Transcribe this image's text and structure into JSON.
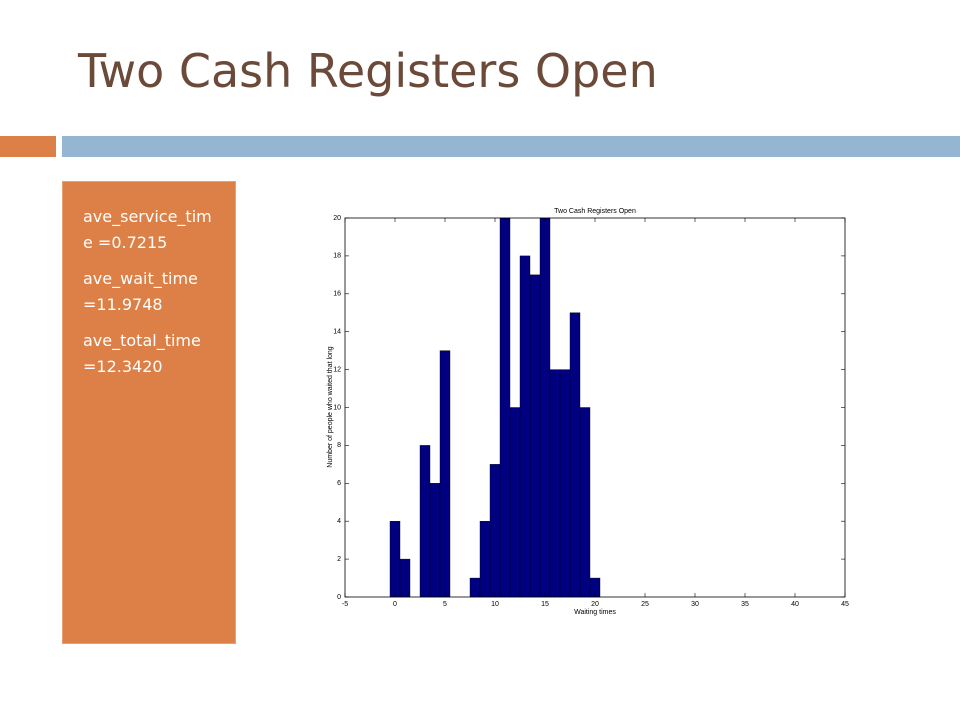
{
  "slide": {
    "title": "Two Cash Registers Open"
  },
  "textbox": {
    "lines": [
      "ave_service_time =0.7215",
      "ave_wait_time =11.9748",
      "ave_total_time =12.3420"
    ]
  },
  "chart_data": {
    "type": "histogram",
    "title": "Two Cash Registers Open",
    "x_label": "Waiting times",
    "y_label": "Number of people who waited that long",
    "bins": [
      -0.5,
      0.5,
      1.5,
      2.5,
      3.5,
      4.5,
      5.5,
      6.5,
      7.5,
      8.5,
      9.5,
      10.5,
      11.5,
      12.5,
      13.5,
      14.5,
      15.5,
      16.5,
      17.5,
      18.5,
      19.5,
      20.5
    ],
    "values": [
      4,
      2,
      0,
      8,
      6,
      13,
      0,
      0,
      1,
      4,
      7,
      20,
      10,
      18,
      17,
      20,
      12,
      12,
      15,
      10,
      1
    ],
    "color": "#000080",
    "xlim": [
      -5,
      45
    ],
    "xticks": [
      -5,
      0,
      5,
      10,
      15,
      20,
      25,
      30,
      35,
      40,
      45
    ],
    "ylim": [
      0,
      20
    ],
    "yticks": [
      0,
      2,
      4,
      6,
      8,
      10,
      12,
      14,
      16,
      18,
      20
    ]
  }
}
